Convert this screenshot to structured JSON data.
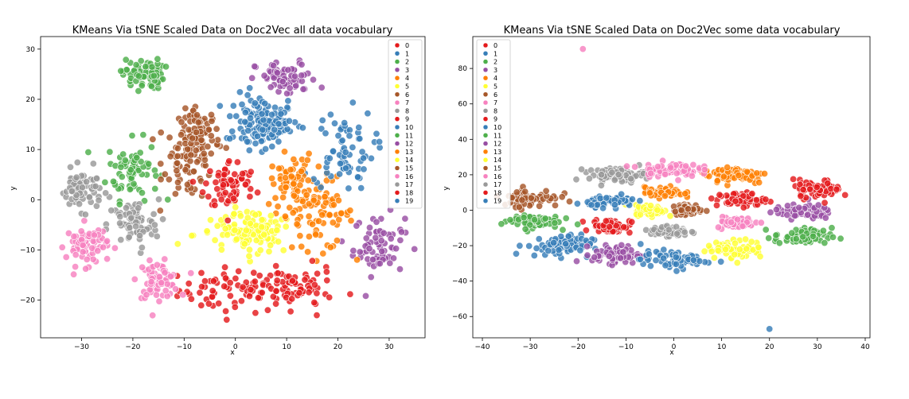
{
  "colors": {
    "palette": [
      "#e41a1c",
      "#377eb8",
      "#4daf4a",
      "#984ea3",
      "#ff7f00",
      "#ffff33",
      "#a65628",
      "#f781bf",
      "#999999",
      "#e41a1c",
      "#377eb8",
      "#4daf4a",
      "#984ea3",
      "#ff7f00",
      "#ffff33",
      "#a65628",
      "#f781bf",
      "#999999",
      "#e41a1c",
      "#377eb8"
    ]
  },
  "chart_data": [
    {
      "type": "scatter",
      "title": "KMeans Via tSNE Scaled Data on Doc2Vec all data vocabulary",
      "xlabel": "x",
      "ylabel": "y",
      "xlim": [
        -38,
        37
      ],
      "ylim": [
        -27.5,
        32.5
      ],
      "xticks": [
        -30,
        -20,
        -10,
        0,
        10,
        20,
        30
      ],
      "yticks": [
        -20,
        -10,
        0,
        10,
        20,
        30
      ],
      "legend_position": "top-right",
      "grid": false,
      "series": [
        {
          "name": "0",
          "cluster_center": [
            0,
            -18
          ],
          "spread": [
            11,
            4.5
          ]
        },
        {
          "name": "1",
          "cluster_center": [
            5,
            16
          ],
          "spread": [
            7,
            5
          ]
        },
        {
          "name": "2",
          "cluster_center": [
            -20,
            6
          ],
          "spread": [
            5,
            6
          ]
        },
        {
          "name": "3",
          "cluster_center": [
            28,
            -9
          ],
          "spread": [
            5,
            6
          ]
        },
        {
          "name": "4",
          "cluster_center": [
            17,
            -3
          ],
          "spread": [
            6,
            7
          ]
        },
        {
          "name": "5",
          "cluster_center": [
            2,
            -7
          ],
          "spread": [
            10,
            4
          ]
        },
        {
          "name": "6",
          "cluster_center": [
            -9,
            8
          ],
          "spread": [
            5,
            8
          ]
        },
        {
          "name": "7",
          "cluster_center": [
            -15,
            -16
          ],
          "spread": [
            4,
            3.5
          ]
        },
        {
          "name": "8",
          "cluster_center": [
            -20,
            -5
          ],
          "spread": [
            5,
            5
          ]
        },
        {
          "name": "9",
          "cluster_center": [
            -1,
            3
          ],
          "spread": [
            5,
            5
          ]
        },
        {
          "name": "10",
          "cluster_center": [
            21,
            10
          ],
          "spread": [
            6,
            8
          ]
        },
        {
          "name": "11",
          "cluster_center": [
            -18,
            25
          ],
          "spread": [
            4,
            3
          ]
        },
        {
          "name": "12",
          "cluster_center": [
            10,
            24
          ],
          "spread": [
            6,
            3.5
          ]
        },
        {
          "name": "13",
          "cluster_center": [
            11,
            3
          ],
          "spread": [
            4,
            6
          ]
        },
        {
          "name": "14",
          "cluster_center": [
            4,
            -6
          ],
          "spread": [
            5,
            4
          ]
        },
        {
          "name": "15",
          "cluster_center": [
            -7,
            13
          ],
          "spread": [
            4,
            5
          ]
        },
        {
          "name": "16",
          "cluster_center": [
            -29,
            -9
          ],
          "spread": [
            4,
            4
          ]
        },
        {
          "name": "17",
          "cluster_center": [
            -30,
            2
          ],
          "spread": [
            4,
            4
          ]
        },
        {
          "name": "18",
          "cluster_center": [
            12,
            -18
          ],
          "spread": [
            7,
            4
          ]
        },
        {
          "name": "19",
          "cluster_center": [
            5,
            14
          ],
          "spread": [
            5,
            4
          ]
        }
      ]
    },
    {
      "type": "scatter",
      "title": "KMeans Via tSNE Scaled Data on Doc2Vec some data vocabulary",
      "xlabel": "x",
      "ylabel": "y",
      "xlim": [
        -42,
        41
      ],
      "ylim": [
        -72,
        98
      ],
      "xticks": [
        -40,
        -30,
        -20,
        -10,
        0,
        10,
        20,
        30,
        40
      ],
      "yticks": [
        -60,
        -40,
        -20,
        0,
        20,
        40,
        60,
        80
      ],
      "legend_position": "top-left",
      "grid": false,
      "outliers": [
        {
          "x": -19,
          "y": 91,
          "series": "7"
        },
        {
          "x": 20,
          "y": -67,
          "series": "10"
        }
      ],
      "series": [
        {
          "name": "0",
          "cluster_center": [
            -13,
            -9
          ],
          "spread": [
            4,
            4
          ]
        },
        {
          "name": "1",
          "cluster_center": [
            -24,
            -20
          ],
          "spread": [
            7,
            6
          ]
        },
        {
          "name": "2",
          "cluster_center": [
            27,
            -15
          ],
          "spread": [
            6,
            5
          ]
        },
        {
          "name": "3",
          "cluster_center": [
            -12,
            -25
          ],
          "spread": [
            5,
            5
          ]
        },
        {
          "name": "4",
          "cluster_center": [
            13,
            20
          ],
          "spread": [
            7,
            5
          ]
        },
        {
          "name": "5",
          "cluster_center": [
            -5,
            0
          ],
          "spread": [
            3,
            3
          ]
        },
        {
          "name": "6",
          "cluster_center": [
            -30,
            7
          ],
          "spread": [
            6,
            5
          ]
        },
        {
          "name": "7",
          "cluster_center": [
            13,
            -7
          ],
          "spread": [
            4,
            3
          ]
        },
        {
          "name": "8",
          "cluster_center": [
            -12,
            20
          ],
          "spread": [
            6,
            4
          ]
        },
        {
          "name": "9",
          "cluster_center": [
            14,
            6
          ],
          "spread": [
            5,
            4
          ]
        },
        {
          "name": "10",
          "cluster_center": [
            0,
            -28
          ],
          "spread": [
            7,
            5
          ]
        },
        {
          "name": "11",
          "cluster_center": [
            -30,
            -6
          ],
          "spread": [
            6,
            4
          ]
        },
        {
          "name": "12",
          "cluster_center": [
            27,
            -1
          ],
          "spread": [
            6,
            4
          ]
        },
        {
          "name": "13",
          "cluster_center": [
            -2,
            10
          ],
          "spread": [
            4,
            3
          ]
        },
        {
          "name": "14",
          "cluster_center": [
            13,
            -22
          ],
          "spread": [
            6,
            5
          ]
        },
        {
          "name": "15",
          "cluster_center": [
            3,
            0
          ],
          "spread": [
            3,
            3
          ]
        },
        {
          "name": "16",
          "cluster_center": [
            -1,
            23
          ],
          "spread": [
            6,
            4
          ]
        },
        {
          "name": "17",
          "cluster_center": [
            -1,
            -12
          ],
          "spread": [
            4,
            3
          ]
        },
        {
          "name": "18",
          "cluster_center": [
            30,
            12
          ],
          "spread": [
            5,
            5
          ]
        },
        {
          "name": "19",
          "cluster_center": [
            -13,
            5
          ],
          "spread": [
            5,
            3
          ]
        }
      ]
    }
  ]
}
